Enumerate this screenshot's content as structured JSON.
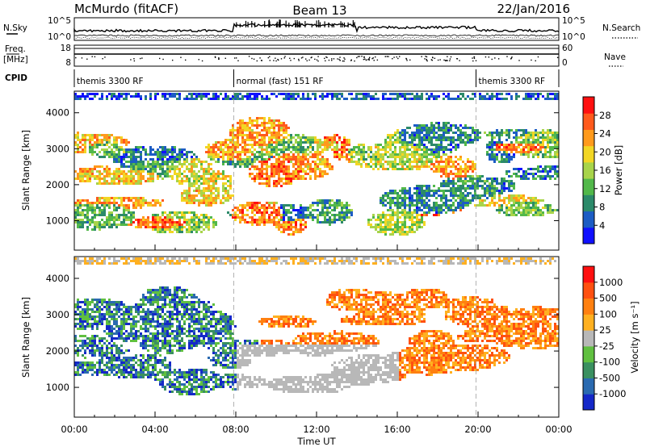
{
  "header": {
    "station": "McMurdo (fitACF)",
    "beam": "Beam 13",
    "date": "22/Jan/2016"
  },
  "top_panels": {
    "nsky_label": "N.Sky",
    "nsearch_label": "N.Search",
    "nsky_ticks": [
      "10^5",
      "10^0"
    ],
    "nsearch_ticks": [
      "10^5",
      "10^0"
    ],
    "freq_label_1": "Freq.",
    "freq_label_2": "[MHz]",
    "freq_ticks": [
      "18",
      "8"
    ],
    "nave_label": "Nave",
    "nave_ticks": [
      "60",
      "0"
    ],
    "cpid_label": "CPID",
    "cpid_segments": [
      {
        "label": "themis 3300 RF",
        "start_h": 0,
        "end_h": 7.9
      },
      {
        "label": "normal (fast) 151 RF",
        "start_h": 7.9,
        "end_h": 19.9
      },
      {
        "label": "themis 3300 RF",
        "start_h": 19.9,
        "end_h": 24
      }
    ]
  },
  "chart_data": [
    {
      "type": "heatmap",
      "name": "power-panel",
      "ylabel": "Slant Range [km]",
      "xlabel": "",
      "ylim": [
        180,
        4600
      ],
      "yticks": [
        1000,
        2000,
        3000,
        4000
      ],
      "xlim": [
        0,
        24
      ],
      "colorbar": {
        "label": "Power [dB]",
        "ticks": [
          "28",
          "24",
          "20",
          "16",
          "12",
          "8",
          "4"
        ],
        "colors": [
          "#1010ff",
          "#1c5cc4",
          "#2c8a6a",
          "#52b84a",
          "#a8d44a",
          "#f2d624",
          "#ff9a1c",
          "#ff5a1c",
          "#ff1010"
        ]
      }
    },
    {
      "type": "heatmap",
      "name": "velocity-panel",
      "ylabel": "Slant Range [km]",
      "xlabel": "Time UT",
      "ylim": [
        180,
        4600
      ],
      "yticks": [
        1000,
        2000,
        3000,
        4000
      ],
      "xlim": [
        0,
        24
      ],
      "xticks": [
        "00:00",
        "04:00",
        "08:00",
        "12:00",
        "16:00",
        "20:00",
        "00:00"
      ],
      "colorbar": {
        "label": "Velocity [m s⁻¹]",
        "ticks": [
          "1000",
          "500",
          "100",
          "25",
          "-25",
          "-100",
          "-500",
          "-1000"
        ],
        "colors": [
          "#1428c8",
          "#2a6ab0",
          "#3a9060",
          "#60c040",
          "#b8b8b8",
          "#ffb020",
          "#ff8010",
          "#ff5010",
          "#ff1010"
        ]
      }
    }
  ],
  "colors": {
    "frame": "#000000",
    "guide": "#a0a0a0"
  }
}
